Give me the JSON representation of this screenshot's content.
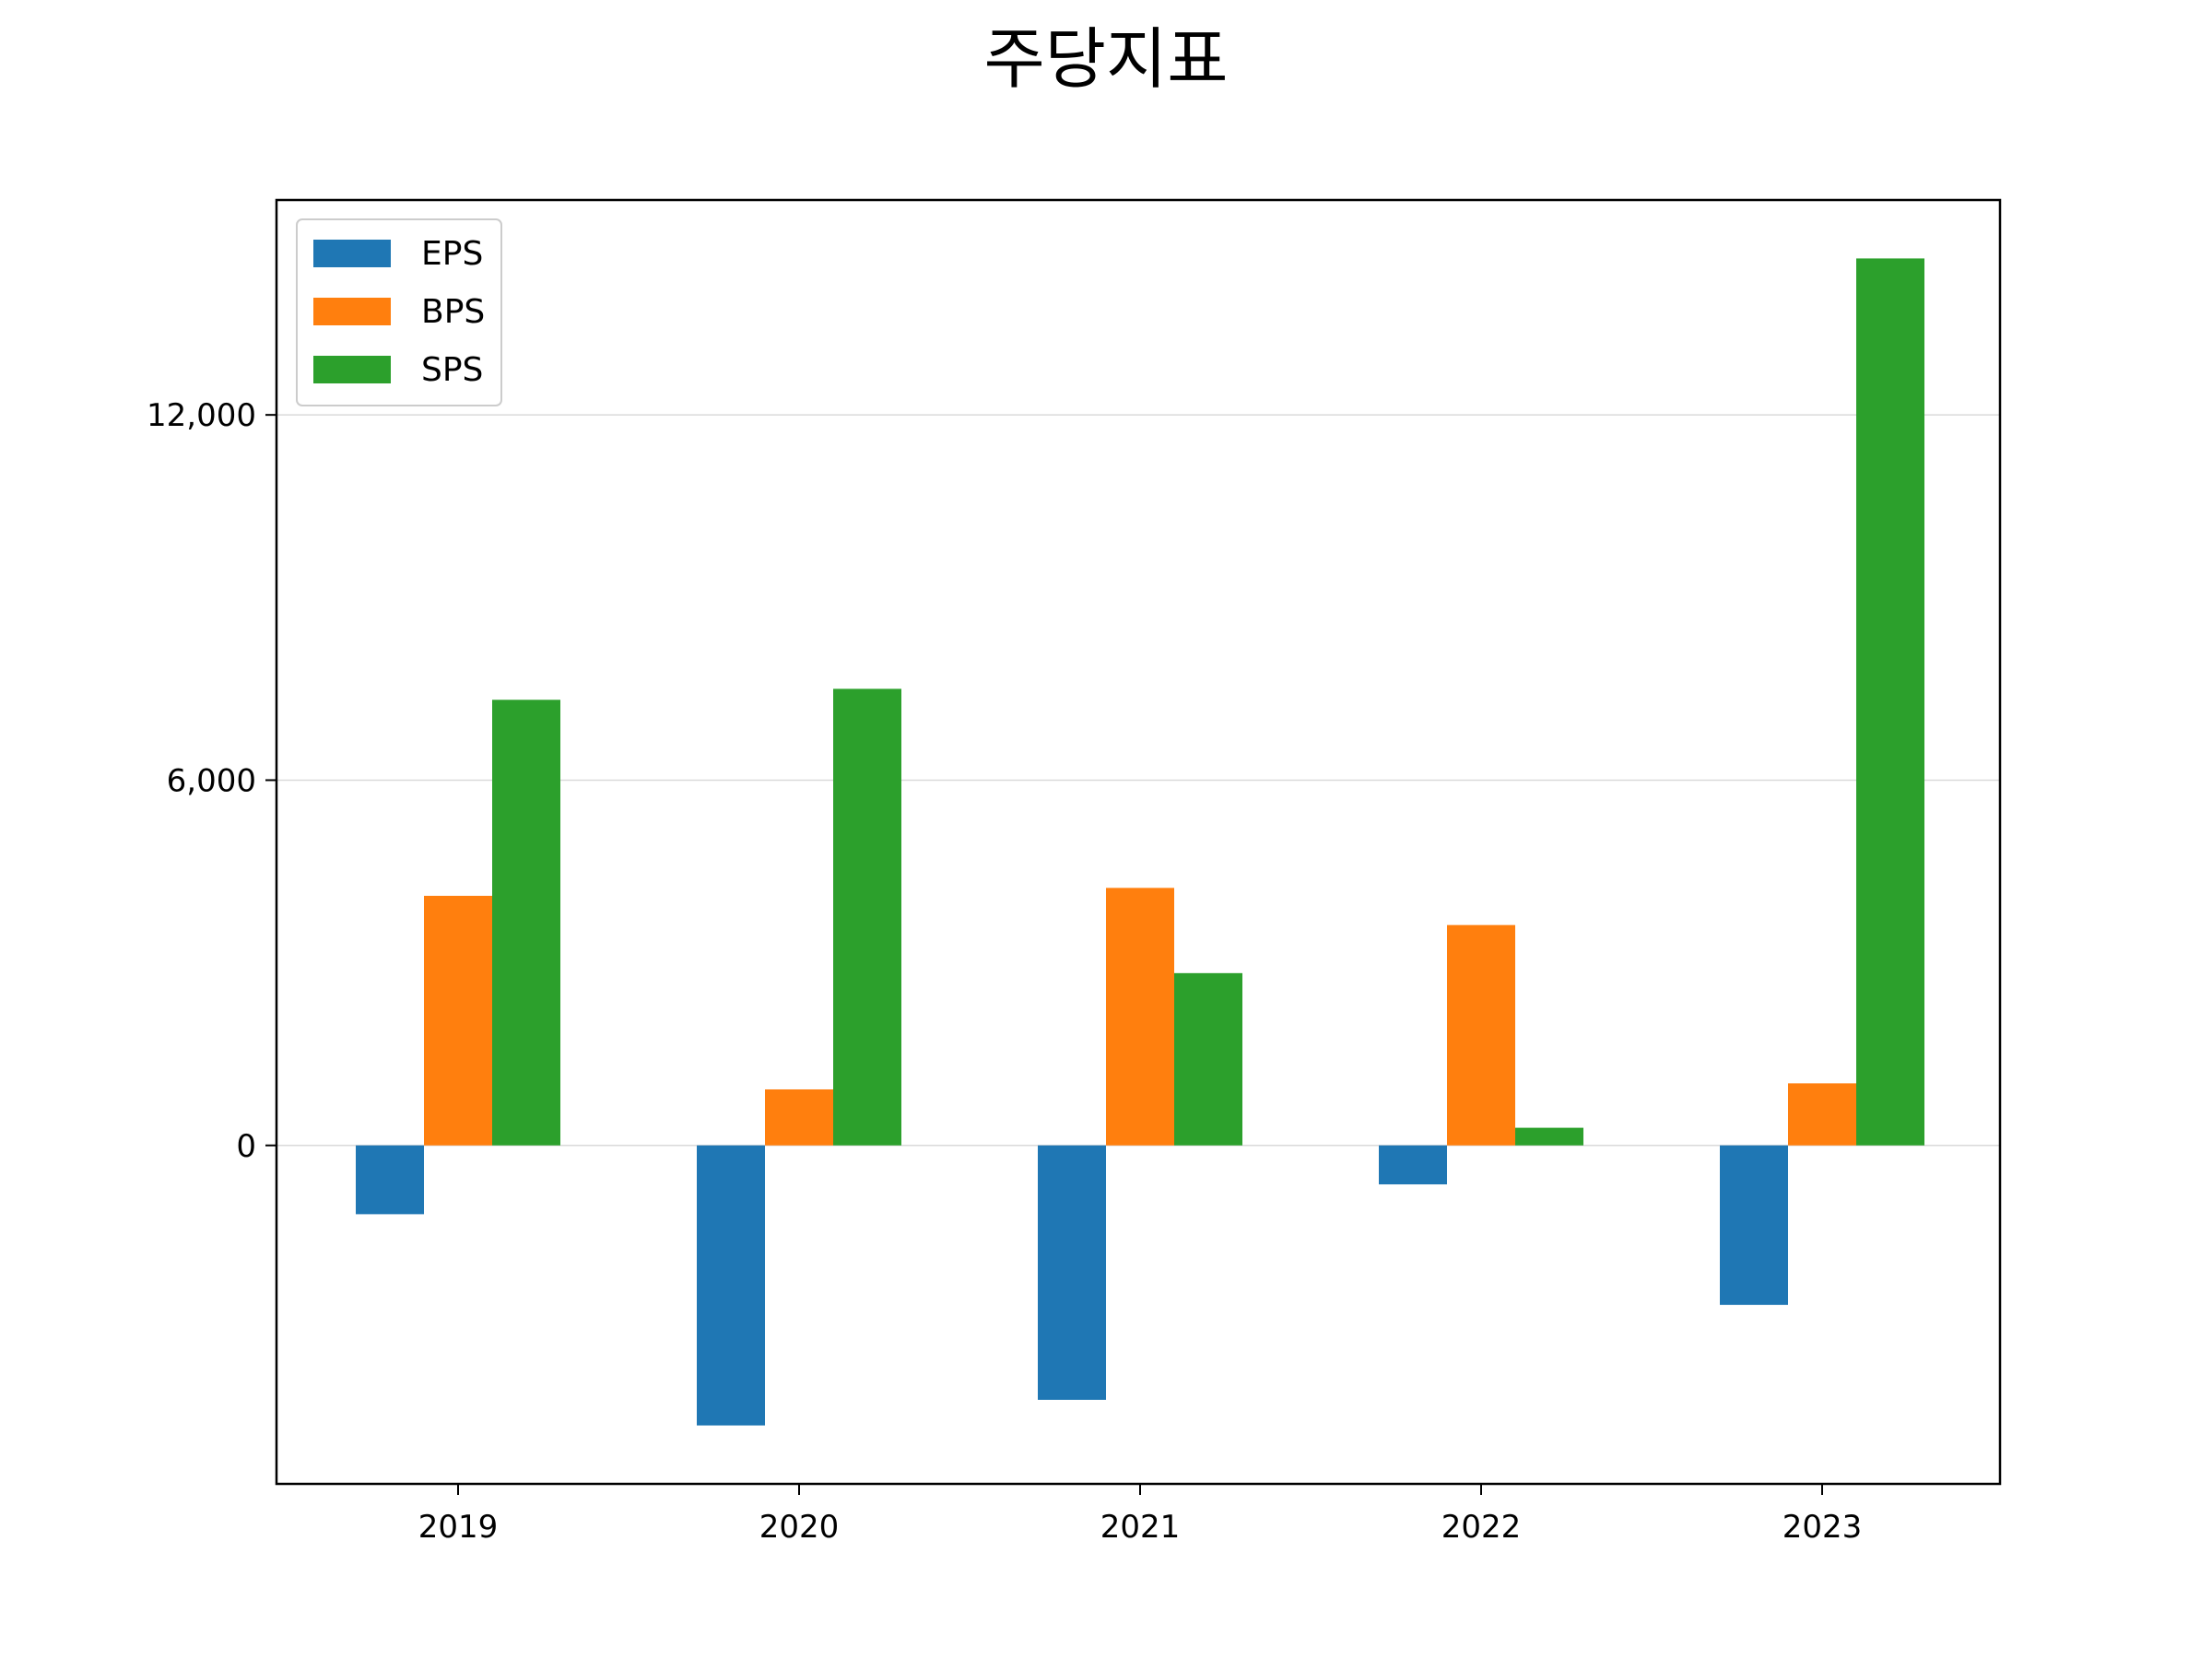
{
  "chart_data": {
    "type": "bar",
    "title": "주당지표",
    "xlabel": "",
    "ylabel": "",
    "categories": [
      "2019",
      "2020",
      "2021",
      "2022",
      "2023"
    ],
    "series": [
      {
        "name": "EPS",
        "color": "#1f77b4",
        "values": [
          -1130,
          -4600,
          -4180,
          -640,
          -2620
        ]
      },
      {
        "name": "BPS",
        "color": "#ff7f0e",
        "values": [
          4100,
          920,
          4230,
          3620,
          1020
        ]
      },
      {
        "name": "SPS",
        "color": "#2ca02c",
        "values": [
          7320,
          7500,
          2830,
          290,
          14570
        ]
      }
    ],
    "ylim": [
      -5560,
      15530
    ],
    "yticks": [
      {
        "value": 0,
        "label": "0"
      },
      {
        "value": 6000,
        "label": "6,000"
      },
      {
        "value": 12000,
        "label": "12,000"
      }
    ],
    "grid": "horizontal",
    "legend_position": "top-left",
    "colors": {
      "axis": "#000000",
      "grid": "#d9d9d9",
      "background": "#ffffff"
    }
  }
}
